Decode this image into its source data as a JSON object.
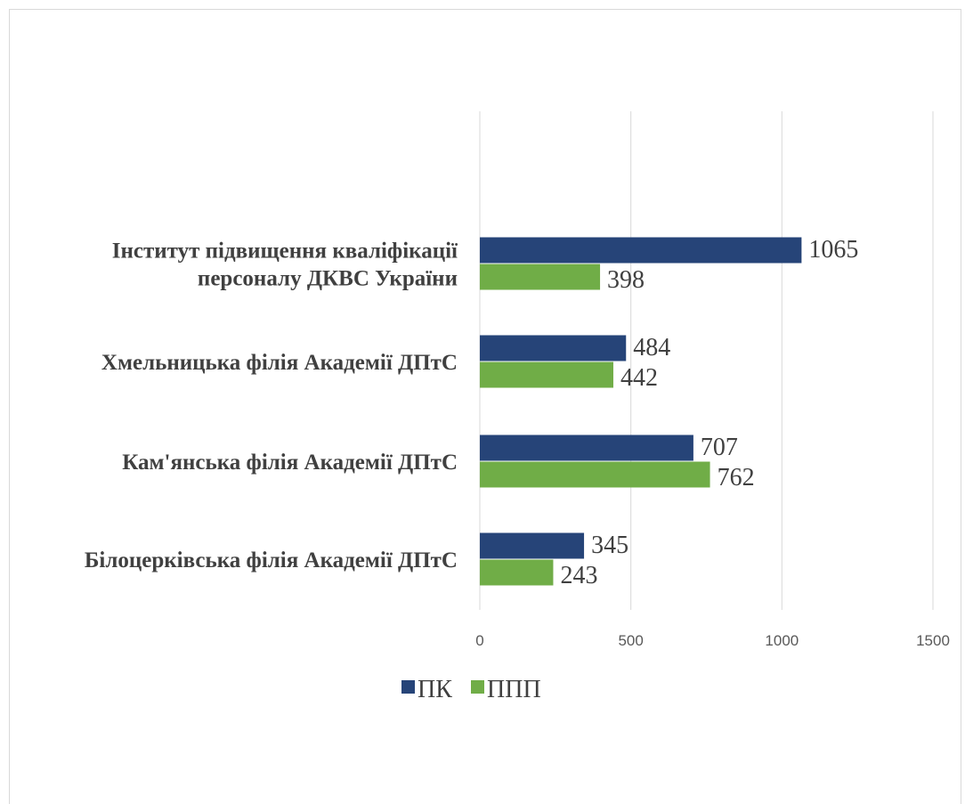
{
  "chart_data": {
    "type": "bar",
    "orientation": "horizontal",
    "categories": [
      [
        "Інститут підвищення кваліфікації",
        "персоналу ДКВС України"
      ],
      [
        "Хмельницька філія Академії ДПтС"
      ],
      [
        "Кам'янська філія Академії ДПтС"
      ],
      [
        "Білоцерківська філія Академії  ДПтС"
      ]
    ],
    "series": [
      {
        "name": "ПК",
        "color": "#264478",
        "values": [
          1065,
          484,
          707,
          345
        ]
      },
      {
        "name": "ППП",
        "color": "#70ad47",
        "values": [
          398,
          442,
          762,
          243
        ]
      }
    ],
    "xlim": [
      0,
      1500
    ],
    "xticks": [
      0,
      500,
      1000,
      1500
    ],
    "grid": "vertical",
    "legend_position": "bottom",
    "data_labels": true
  }
}
